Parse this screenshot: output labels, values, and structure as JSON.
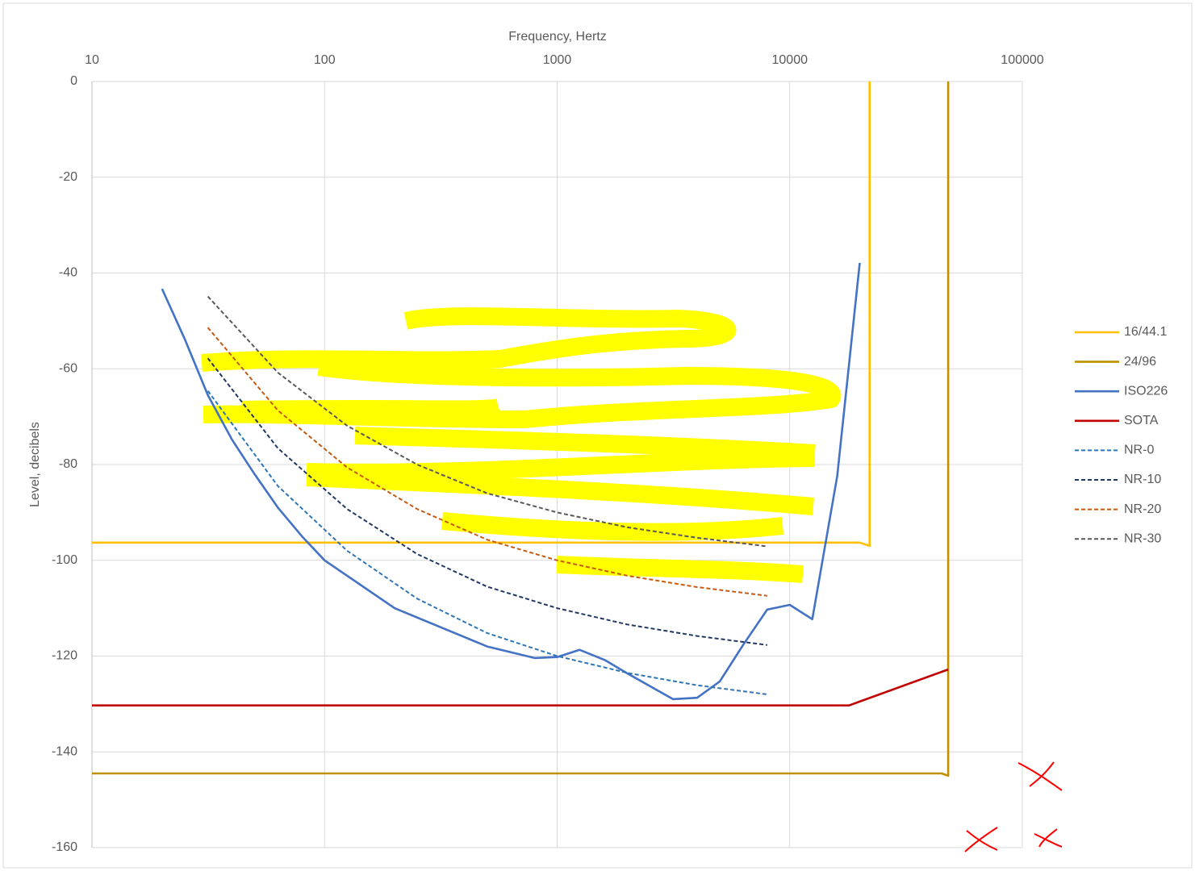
{
  "chart_data": {
    "type": "line",
    "x_label": "Frequency, Hertz",
    "y_label": "Level, decibels",
    "xscale": "log",
    "x_axis_position": "top",
    "xlim": [
      10,
      100000
    ],
    "xticks": [
      10,
      100,
      1000,
      10000,
      100000
    ],
    "ylim": [
      -160,
      0
    ],
    "yticks": [
      0,
      -20,
      -40,
      -60,
      -80,
      -100,
      -120,
      -140,
      -160
    ],
    "grid": true,
    "legend_position": "right",
    "series": [
      {
        "name": "16/44.1",
        "color": "#FFC000",
        "dash": false,
        "x": [
          10,
          20000,
          22050,
          22050
        ],
        "values": [
          -96.3,
          -96.3,
          -97,
          0
        ]
      },
      {
        "name": "24/96",
        "color": "#BF9000",
        "dash": false,
        "x": [
          10,
          45000,
          48000,
          48000
        ],
        "values": [
          -144.5,
          -144.5,
          -145,
          0
        ]
      },
      {
        "name": "ISO226",
        "color": "#4472C4",
        "dash": false,
        "x": [
          20,
          25,
          31.5,
          40,
          50,
          63,
          80,
          100,
          200,
          500,
          800,
          1000,
          1250,
          1600,
          2000,
          3150,
          4000,
          5000,
          6300,
          8000,
          10000,
          12500,
          16000,
          20000
        ],
        "values": [
          -43.3,
          -53.7,
          -65.5,
          -74.8,
          -82,
          -89,
          -95,
          -100,
          -110,
          -118,
          -120.4,
          -120.2,
          -118.7,
          -120.8,
          -123.6,
          -129,
          -128.7,
          -125.3,
          -117.7,
          -110.3,
          -109.3,
          -112.3,
          -82.4,
          -37.9
        ]
      },
      {
        "name": "SOTA",
        "color": "#C00000",
        "dash": false,
        "x": [
          10,
          18000,
          20000,
          48000
        ],
        "values": [
          -130.3,
          -130.3,
          -129.5,
          -122.8
        ]
      },
      {
        "name": "NR-0",
        "color": "#2E75B6",
        "dash": true,
        "x": [
          31.5,
          63,
          125,
          250,
          500,
          1000,
          2000,
          4000,
          8000
        ],
        "values": [
          -64.6,
          -84.5,
          -98,
          -108,
          -115.2,
          -120,
          -123.5,
          -126.1,
          -128
        ]
      },
      {
        "name": "NR-10",
        "color": "#203864",
        "dash": true,
        "x": [
          31.5,
          63,
          125,
          250,
          500,
          1000,
          2000,
          4000,
          8000
        ],
        "values": [
          -57.8,
          -76.6,
          -89.3,
          -98.7,
          -105.5,
          -110,
          -113.4,
          -115.8,
          -117.7
        ]
      },
      {
        "name": "NR-20",
        "color": "#C55A11",
        "dash": true,
        "x": [
          31.5,
          63,
          125,
          250,
          500,
          1000,
          2000,
          4000,
          8000
        ],
        "values": [
          -51.4,
          -68.7,
          -80.6,
          -89.3,
          -95.7,
          -100,
          -103.2,
          -105.6,
          -107.4
        ]
      },
      {
        "name": "NR-30",
        "color": "#595959",
        "dash": true,
        "x": [
          31.5,
          63,
          125,
          250,
          500,
          1000,
          2000,
          4000,
          8000
        ],
        "values": [
          -44.9,
          -60.8,
          -71.9,
          -80,
          -86,
          -90,
          -93.1,
          -95.3,
          -97.1
        ]
      }
    ]
  }
}
